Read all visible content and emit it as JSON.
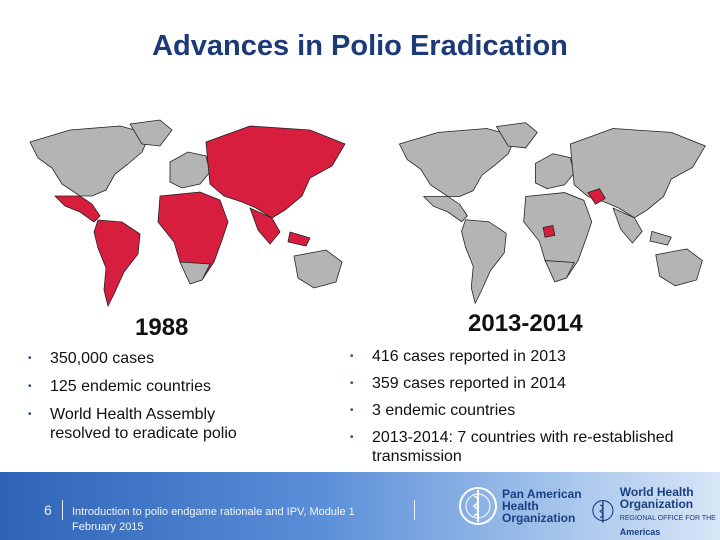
{
  "slide": {
    "title": "Advances in Polio Eradication",
    "left": {
      "year": "1988",
      "bullets": [
        "350,000 cases",
        "125 endemic countries",
        "World Health Assembly resolved to eradicate polio"
      ]
    },
    "right": {
      "year": "2013-2014",
      "bullets": [
        "416 cases reported in 2013",
        "359 cases reported in 2014",
        "3 endemic countries",
        "2013-2014: 7 countries with re-established transmission"
      ]
    },
    "bullet_symbol": "•"
  },
  "footer": {
    "page_number": "6",
    "module_text": "Introduction to polio endgame rationale and IPV, Module 1",
    "date_text": "February 2015",
    "paho_logo": {
      "line1": "Pan American",
      "line2": "Health",
      "line3": "Organization"
    },
    "who_logo": {
      "line1": "World Health",
      "line2": "Organization",
      "line3": "Americas",
      "small": "REGIONAL OFFICE FOR THE"
    }
  },
  "colors": {
    "title": "#1c3a78",
    "polio_red": "#d81e3e",
    "land_gray": "#b4b4b4",
    "footer_blue": "#2e63b8"
  }
}
